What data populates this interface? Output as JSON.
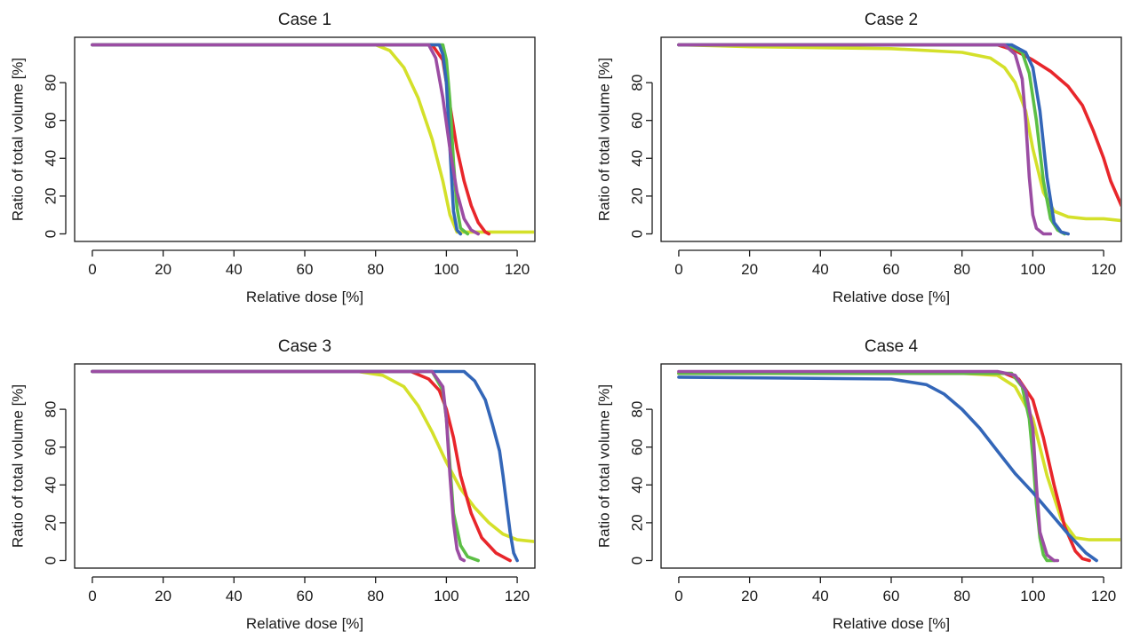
{
  "chart_data": [
    {
      "type": "line",
      "title": "Case 1",
      "xlabel": "Relative dose [%]",
      "ylabel": "Ratio of total volume [%]",
      "xlim": [
        -5,
        125
      ],
      "ylim": [
        -4,
        104
      ],
      "xticks": [
        "0",
        "20",
        "40",
        "60",
        "80",
        "100",
        "120"
      ],
      "yticks": [
        "0",
        "20",
        "40",
        "60",
        "80"
      ],
      "grid": false,
      "series": [
        {
          "color": "#d4e02a",
          "x": [
            0,
            80,
            84,
            88,
            92,
            96,
            99,
            101,
            103,
            125
          ],
          "y": [
            100,
            100,
            97,
            88,
            72,
            50,
            28,
            10,
            1,
            1
          ]
        },
        {
          "color": "#e8262b",
          "x": [
            0,
            96,
            99,
            101,
            103,
            105,
            107,
            109,
            111,
            112
          ],
          "y": [
            100,
            100,
            92,
            68,
            45,
            28,
            15,
            6,
            1,
            0
          ]
        },
        {
          "color": "#5cbf45",
          "x": [
            0,
            99,
            100,
            101,
            102,
            103,
            104,
            106
          ],
          "y": [
            100,
            100,
            92,
            70,
            38,
            14,
            3,
            0
          ]
        },
        {
          "color": "#3366b8",
          "x": [
            0,
            98,
            99,
            100,
            101,
            102,
            103,
            104
          ],
          "y": [
            100,
            100,
            95,
            80,
            45,
            12,
            2,
            0
          ]
        },
        {
          "color": "#9b4da3",
          "x": [
            0,
            95,
            97,
            99,
            101,
            103,
            105,
            107,
            109
          ],
          "y": [
            100,
            100,
            93,
            72,
            45,
            22,
            8,
            2,
            0
          ]
        }
      ]
    },
    {
      "type": "line",
      "title": "Case 2",
      "xlabel": "Relative dose [%]",
      "ylabel": "Ratio of total volume [%]",
      "xlim": [
        -5,
        125
      ],
      "ylim": [
        -4,
        104
      ],
      "xticks": [
        "0",
        "20",
        "40",
        "60",
        "80",
        "100",
        "120"
      ],
      "yticks": [
        "0",
        "20",
        "40",
        "60",
        "80"
      ],
      "grid": false,
      "series": [
        {
          "color": "#d4e02a",
          "x": [
            0,
            20,
            60,
            80,
            88,
            92,
            95,
            98,
            100,
            103,
            106,
            110,
            115,
            120,
            125
          ],
          "y": [
            100,
            99,
            98,
            96,
            93,
            88,
            80,
            65,
            45,
            22,
            12,
            9,
            8,
            8,
            7
          ]
        },
        {
          "color": "#e8262b",
          "x": [
            0,
            90,
            95,
            100,
            105,
            110,
            114,
            117,
            120,
            122,
            125
          ],
          "y": [
            100,
            100,
            97,
            92,
            86,
            78,
            68,
            55,
            40,
            28,
            15
          ]
        },
        {
          "color": "#5cbf45",
          "x": [
            0,
            93,
            97,
            99,
            101,
            103,
            105,
            107,
            109
          ],
          "y": [
            100,
            100,
            96,
            85,
            60,
            28,
            8,
            2,
            0
          ]
        },
        {
          "color": "#3366b8",
          "x": [
            0,
            94,
            98,
            100,
            102,
            104,
            106,
            108,
            110
          ],
          "y": [
            100,
            100,
            96,
            88,
            65,
            30,
            6,
            1,
            0
          ]
        },
        {
          "color": "#9b4da3",
          "x": [
            0,
            92,
            95,
            97,
            98,
            99,
            100,
            101,
            103,
            105
          ],
          "y": [
            100,
            100,
            95,
            82,
            60,
            30,
            10,
            3,
            0,
            0
          ]
        }
      ]
    },
    {
      "type": "line",
      "title": "Case 3",
      "xlabel": "Relative dose [%]",
      "ylabel": "Ratio of total volume [%]",
      "xlim": [
        -5,
        125
      ],
      "ylim": [
        -4,
        104
      ],
      "xticks": [
        "0",
        "20",
        "40",
        "60",
        "80",
        "100",
        "120"
      ],
      "yticks": [
        "0",
        "20",
        "40",
        "60",
        "80"
      ],
      "grid": false,
      "series": [
        {
          "color": "#d4e02a",
          "x": [
            0,
            75,
            82,
            88,
            92,
            96,
            100,
            104,
            108,
            112,
            116,
            120,
            125
          ],
          "y": [
            100,
            100,
            98,
            92,
            82,
            68,
            52,
            38,
            28,
            20,
            14,
            11,
            10
          ]
        },
        {
          "color": "#e8262b",
          "x": [
            0,
            90,
            95,
            98,
            100,
            102,
            104,
            107,
            110,
            114,
            117,
            118
          ],
          "y": [
            100,
            100,
            96,
            90,
            80,
            65,
            45,
            25,
            12,
            4,
            1,
            0
          ]
        },
        {
          "color": "#5cbf45",
          "x": [
            0,
            96,
            99,
            100,
            101,
            102,
            104,
            106,
            109
          ],
          "y": [
            100,
            100,
            90,
            75,
            50,
            25,
            8,
            2,
            0
          ]
        },
        {
          "color": "#3366b8",
          "x": [
            0,
            105,
            108,
            111,
            113,
            115,
            116,
            117,
            118,
            119,
            120
          ],
          "y": [
            100,
            100,
            95,
            85,
            72,
            58,
            45,
            30,
            15,
            4,
            0
          ]
        },
        {
          "color": "#9b4da3",
          "x": [
            0,
            96,
            99,
            100,
            101,
            102,
            103,
            104,
            105
          ],
          "y": [
            100,
            100,
            92,
            75,
            45,
            20,
            6,
            1,
            0
          ]
        }
      ]
    },
    {
      "type": "line",
      "title": "Case 4",
      "xlabel": "Relative dose [%]",
      "ylabel": "Ratio of total volume [%]",
      "xlim": [
        -5,
        125
      ],
      "ylim": [
        -4,
        104
      ],
      "xticks": [
        "0",
        "20",
        "40",
        "60",
        "80",
        "100",
        "120"
      ],
      "yticks": [
        "0",
        "20",
        "40",
        "60",
        "80"
      ],
      "grid": false,
      "series": [
        {
          "color": "#d4e02a",
          "x": [
            0,
            80,
            90,
            95,
            100,
            104,
            108,
            112,
            116,
            120,
            125
          ],
          "y": [
            99,
            99,
            98,
            92,
            75,
            45,
            22,
            12,
            11,
            11,
            11
          ]
        },
        {
          "color": "#e8262b",
          "x": [
            0,
            92,
            96,
            100,
            103,
            106,
            109,
            112,
            114,
            116
          ],
          "y": [
            99,
            99,
            96,
            85,
            65,
            40,
            18,
            5,
            1,
            0
          ]
        },
        {
          "color": "#5cbf45",
          "x": [
            0,
            94,
            97,
            99,
            100,
            101,
            102,
            103,
            104,
            106
          ],
          "y": [
            99,
            99,
            92,
            75,
            55,
            30,
            12,
            3,
            0,
            0
          ]
        },
        {
          "color": "#3366b8",
          "x": [
            0,
            60,
            70,
            75,
            80,
            85,
            90,
            95,
            100,
            105,
            110,
            115,
            118
          ],
          "y": [
            97,
            96,
            93,
            88,
            80,
            70,
            58,
            46,
            36,
            25,
            14,
            4,
            0
          ]
        },
        {
          "color": "#9b4da3",
          "x": [
            0,
            90,
            95,
            98,
            100,
            101,
            102,
            104,
            106,
            107
          ],
          "y": [
            100,
            100,
            98,
            90,
            70,
            40,
            15,
            3,
            0,
            0
          ]
        }
      ]
    }
  ]
}
